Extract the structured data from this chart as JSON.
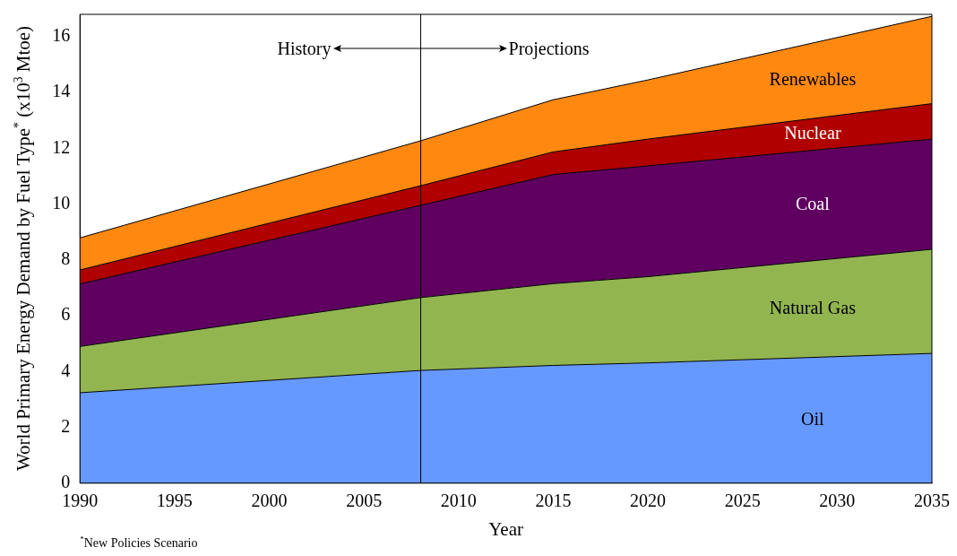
{
  "chart_data": {
    "type": "area",
    "stacked": true,
    "xlabel": "Year",
    "ylabel": "World Primary Energy Demand by Fuel Type$^{*}$ (x10$^{3}$ Mtoe)",
    "x": [
      1990,
      2008,
      2015,
      2020,
      2035
    ],
    "series": [
      {
        "name": "Oil",
        "color": "#6699ff",
        "values": [
          3.24,
          4.04,
          4.22,
          4.31,
          4.65
        ]
      },
      {
        "name": "Natural Gas",
        "color": "#92b550",
        "values": [
          1.66,
          2.61,
          2.93,
          3.09,
          3.73
        ]
      },
      {
        "name": "Coal",
        "color": "#5f0060",
        "values": [
          2.24,
          3.31,
          3.91,
          3.97,
          3.95
        ]
      },
      {
        "name": "Nuclear",
        "color": "#b00000",
        "values": [
          0.5,
          0.7,
          0.81,
          0.96,
          1.27
        ]
      },
      {
        "name": "Renewables",
        "color": "#ff8811",
        "values": [
          1.15,
          1.61,
          1.87,
          2.12,
          3.13
        ]
      }
    ],
    "xlim": [
      1990,
      2035
    ],
    "xticks": [
      1990,
      1995,
      2000,
      2005,
      2010,
      2015,
      2020,
      2025,
      2030,
      2035
    ],
    "ylim": [
      0,
      16.8
    ],
    "yticks": [
      0,
      2,
      4,
      6,
      8,
      10,
      12,
      14,
      16
    ],
    "grid": false,
    "legend": false,
    "ref_lines": [
      {
        "axis": "x",
        "value": 2008,
        "color": "#000000"
      }
    ],
    "annotations": [
      "History",
      "Projections",
      "$^{*}$New Policies Scenario"
    ]
  }
}
